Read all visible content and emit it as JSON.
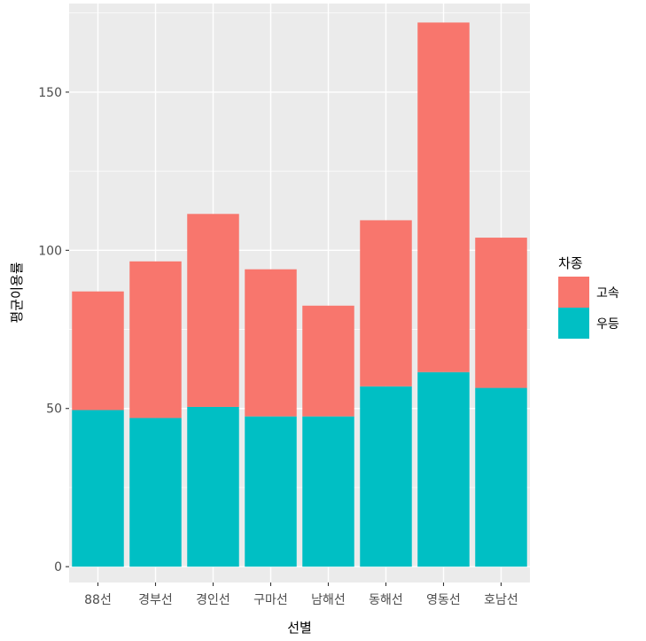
{
  "chart_data": {
    "type": "bar",
    "stacked": true,
    "categories": [
      "88선",
      "경부선",
      "경인선",
      "구마선",
      "남해선",
      "동해선",
      "영동선",
      "호남선"
    ],
    "series": [
      {
        "name": "고속",
        "color": "#F8766D",
        "values": [
          37.5,
          49.5,
          61,
          46.5,
          35,
          52.5,
          110.5,
          47.5
        ]
      },
      {
        "name": "우등",
        "color": "#00BFC4",
        "values": [
          49.5,
          47,
          50.5,
          47.5,
          47.5,
          57,
          61.5,
          56.5
        ]
      }
    ],
    "xlabel": "선별",
    "ylabel": "평균이용률",
    "ylim": [
      -5,
      178
    ],
    "yticks": [
      0,
      50,
      100,
      150
    ],
    "legend": {
      "title": "차종",
      "position": "right"
    },
    "grid": true,
    "background": "#EBEBEB"
  }
}
